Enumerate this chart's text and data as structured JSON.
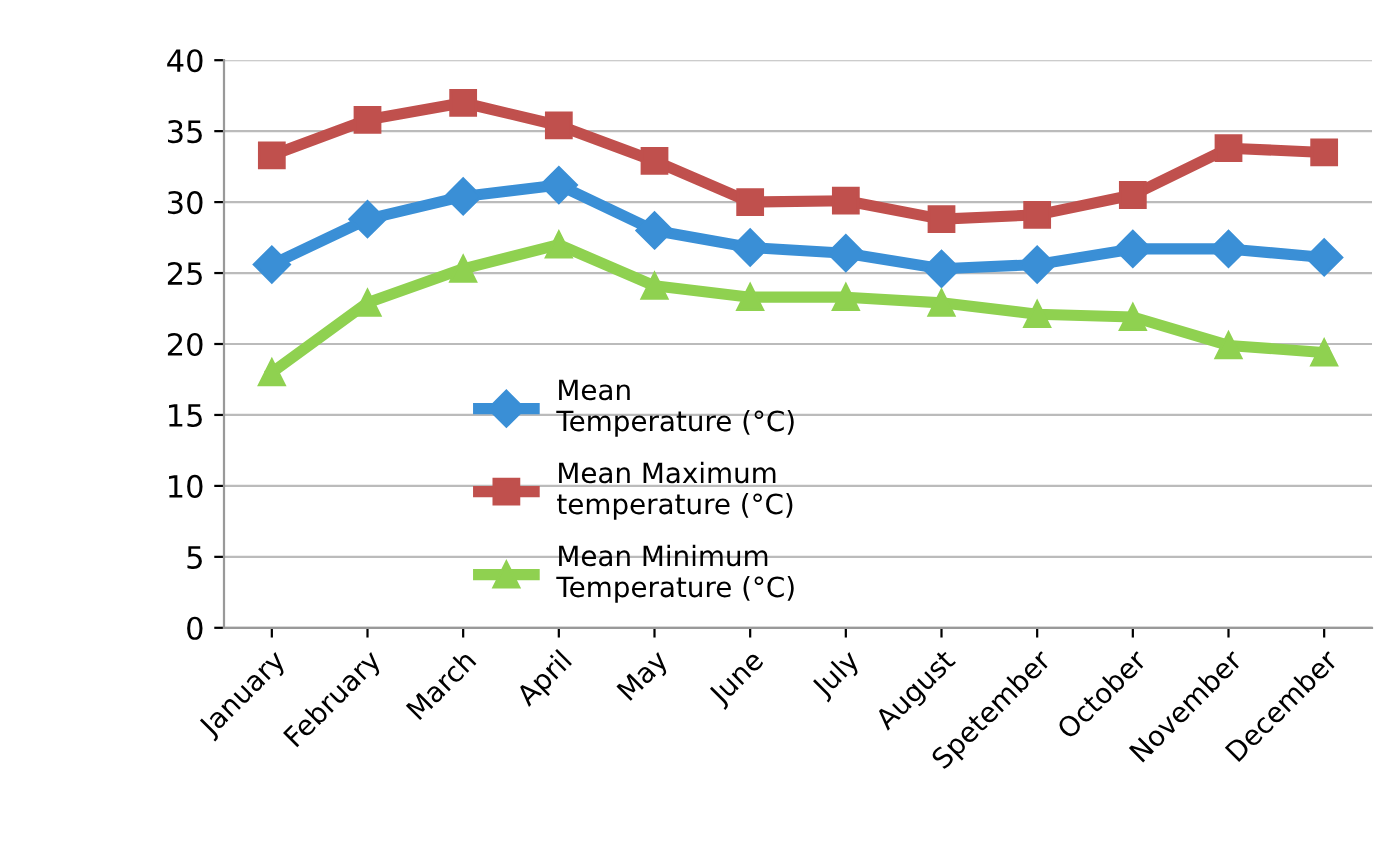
{
  "chart_data": {
    "type": "line",
    "categories": [
      "January",
      "February",
      "March",
      "April",
      "May",
      "June",
      "July",
      "August",
      "Spetember",
      "October",
      "November",
      "December"
    ],
    "series": [
      {
        "name": "Mean Temperature (°C)",
        "color": "#3a8fd6",
        "marker": "diamond",
        "values": [
          25.6,
          28.8,
          30.4,
          31.2,
          28,
          26.8,
          26.4,
          25.3,
          25.6,
          26.7,
          26.7,
          26.1
        ]
      },
      {
        "name": "Mean Maximum temperature (°C)",
        "color": "#c0504d",
        "marker": "square",
        "values": [
          33.3,
          35.8,
          37,
          35.4,
          32.9,
          30,
          30.1,
          28.8,
          29.1,
          30.5,
          33.8,
          33.5
        ]
      },
      {
        "name": "Mean Minimum Temperature (°C)",
        "color": "#8fd150",
        "marker": "triangle",
        "values": [
          18,
          22.9,
          25.3,
          27,
          24.1,
          23.3,
          23.3,
          22.9,
          22.1,
          21.9,
          19.9,
          19.4
        ]
      }
    ],
    "ylim": [
      0,
      40
    ],
    "yticks": [
      0,
      5,
      10,
      15,
      20,
      25,
      30,
      35,
      40
    ],
    "grid": "y",
    "legend": "bottom left",
    "line_style": "solid"
  }
}
